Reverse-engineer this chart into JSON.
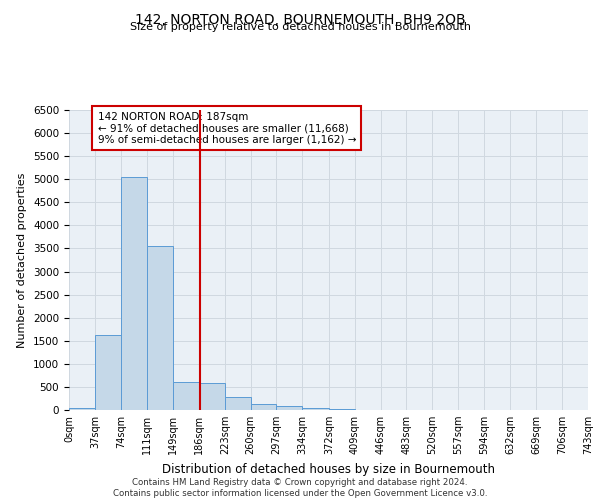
{
  "title": "142, NORTON ROAD, BOURNEMOUTH, BH9 2QB",
  "subtitle": "Size of property relative to detached houses in Bournemouth",
  "xlabel": "Distribution of detached houses by size in Bournemouth",
  "ylabel": "Number of detached properties",
  "footer_line1": "Contains HM Land Registry data © Crown copyright and database right 2024.",
  "footer_line2": "Contains public sector information licensed under the Open Government Licence v3.0.",
  "annotation_title": "142 NORTON ROAD: 187sqm",
  "annotation_line1": "← 91% of detached houses are smaller (11,668)",
  "annotation_line2": "9% of semi-detached houses are larger (1,162) →",
  "property_size": 187,
  "bar_edges": [
    0,
    37,
    74,
    111,
    149,
    186,
    223,
    260,
    297,
    334,
    372,
    409,
    446,
    483,
    520,
    557,
    594,
    632,
    669,
    706,
    743
  ],
  "bar_heights": [
    50,
    1620,
    5050,
    3560,
    600,
    575,
    280,
    120,
    80,
    35,
    20,
    10,
    5,
    3,
    2,
    1,
    1,
    0,
    0,
    0
  ],
  "bar_color": "#c5d8e8",
  "bar_edge_color": "#5b9bd5",
  "vline_color": "#cc0000",
  "vline_x": 187,
  "annotation_box_color": "#cc0000",
  "annotation_box_facecolor": "white",
  "ylim": [
    0,
    6500
  ],
  "yticks": [
    0,
    500,
    1000,
    1500,
    2000,
    2500,
    3000,
    3500,
    4000,
    4500,
    5000,
    5500,
    6000,
    6500
  ],
  "grid_color": "#d0d8e0",
  "background_color": "#eaf0f6",
  "tick_labels": [
    "0sqm",
    "37sqm",
    "74sqm",
    "111sqm",
    "149sqm",
    "186sqm",
    "223sqm",
    "260sqm",
    "297sqm",
    "334sqm",
    "372sqm",
    "409sqm",
    "446sqm",
    "483sqm",
    "520sqm",
    "557sqm",
    "594sqm",
    "632sqm",
    "669sqm",
    "706sqm",
    "743sqm"
  ]
}
